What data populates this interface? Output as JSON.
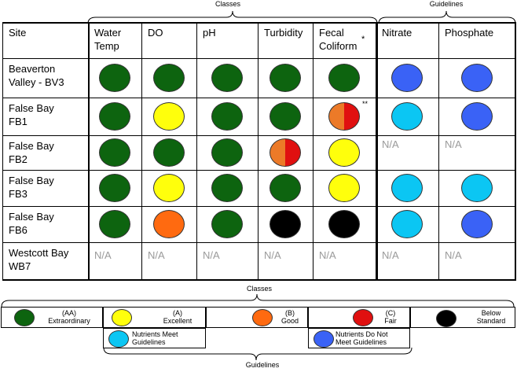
{
  "top_labels": {
    "classes": "Classes",
    "guidelines": "Guidelines"
  },
  "columns": [
    "Site",
    "Water Temp",
    "DO",
    "pH",
    "Turbidity",
    "Fecal Coliform",
    "Nitrate",
    "Phosphate"
  ],
  "header_lines": {
    "site": [
      "Site"
    ],
    "water_temp": [
      "Water",
      "Temp"
    ],
    "do": [
      "DO"
    ],
    "ph": [
      "pH"
    ],
    "turbidity": [
      "Turbidity"
    ],
    "fecal": [
      "Fecal",
      "Coliform"
    ],
    "fecal_mark": "*",
    "nitrate": [
      "Nitrate"
    ],
    "phosphate": [
      "Phosphate"
    ]
  },
  "na_text": "N/A",
  "colors": {
    "AA": "#0d640f",
    "A": "#ffff0c",
    "B": "#ff6a10",
    "C": "#e01010",
    "below": "#000000",
    "meet": "#0bc6f3",
    "notmeet": "#3a62f6",
    "orange_half": "#ec7a28"
  },
  "rows": [
    {
      "site": [
        "Beaverton",
        "Valley - BV3"
      ],
      "cells": [
        "AA",
        "AA",
        "AA",
        "AA",
        "AA",
        "notmeet",
        "notmeet"
      ],
      "mark": ""
    },
    {
      "site": [
        "False Bay",
        "FB1"
      ],
      "cells": [
        "AA",
        "A",
        "AA",
        "AA",
        "orange_half|C",
        "meet",
        "notmeet"
      ],
      "mark": "**"
    },
    {
      "site": [
        "False Bay",
        "FB2"
      ],
      "cells": [
        "AA",
        "AA",
        "AA",
        "orange_half|C",
        "A",
        "NA",
        "NA"
      ],
      "mark": ""
    },
    {
      "site": [
        "False Bay",
        "FB3"
      ],
      "cells": [
        "AA",
        "A",
        "AA",
        "AA",
        "A",
        "meet",
        "meet"
      ],
      "mark": ""
    },
    {
      "site": [
        "False Bay",
        "FB6"
      ],
      "cells": [
        "AA",
        "B",
        "AA",
        "below",
        "below",
        "meet",
        "notmeet"
      ],
      "mark": ""
    },
    {
      "site": [
        "Westcott Bay",
        "WB7"
      ],
      "cells": [
        "NA",
        "NA",
        "NA",
        "NA",
        "NA",
        "NA",
        "NA"
      ],
      "mark": ""
    }
  ],
  "legend": {
    "classes_label": "Classes",
    "guidelines_label": "Guidelines",
    "items": [
      {
        "key": "AA",
        "lines": [
          "(AA)",
          "Extraordinary"
        ]
      },
      {
        "key": "A",
        "lines": [
          "(A)",
          "Excellent"
        ]
      },
      {
        "key": "B",
        "lines": [
          "(B)",
          "Good"
        ]
      },
      {
        "key": "C",
        "lines": [
          "(C)",
          "Fair"
        ]
      },
      {
        "key": "below",
        "lines": [
          "Below",
          "Standard"
        ]
      },
      {
        "key": "meet",
        "lines": [
          "Nutrients Meet",
          "Guidelines"
        ]
      },
      {
        "key": "notmeet",
        "lines": [
          "Nutrients Do Not",
          "Meet Guidelines"
        ]
      }
    ]
  }
}
